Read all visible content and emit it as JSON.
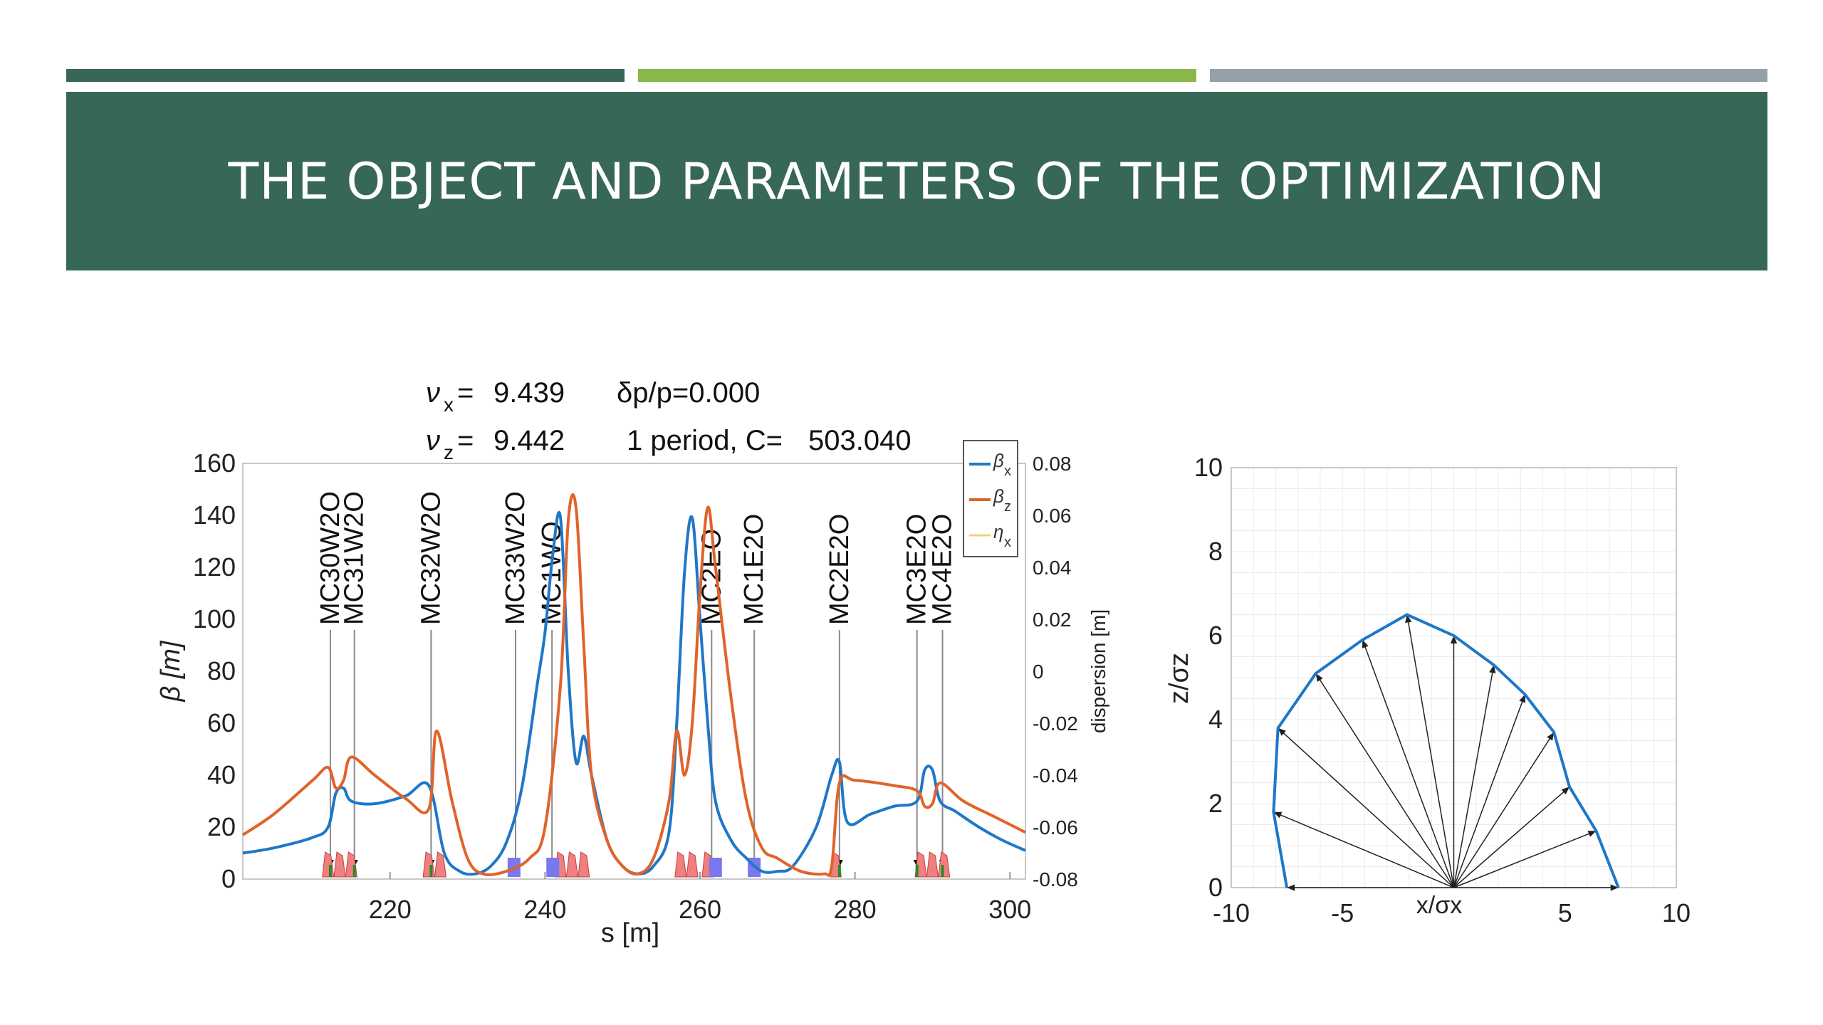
{
  "slide": {
    "title": "THE OBJECT  AND PARAMETERS OF  THE OPTIMIZATION",
    "colors": {
      "banner": "#376755",
      "stripe_dark": "#376755",
      "stripe_green": "#8ab749",
      "stripe_gray": "#94a1a8"
    }
  },
  "chart_data": [
    {
      "type": "line",
      "header": {
        "nux_label": "ν",
        "nux_sub": "x",
        "nux_eq": "=",
        "nux_value": "9.439",
        "dpp": "δp/p=0.000",
        "nuz_label": "ν",
        "nuz_sub": "z",
        "nuz_eq": "=",
        "nuz_value": "9.442",
        "period": "1 period, C=",
        "circumference": "503.040"
      },
      "xlabel": "s [m]",
      "ylabel": "β [m]",
      "y2label": "dispersion [m]",
      "xlim": [
        201,
        302
      ],
      "ylim": [
        0,
        160
      ],
      "y2lim": [
        -0.08,
        0.08
      ],
      "xticks": [
        "220",
        "240",
        "260",
        "280",
        "300"
      ],
      "xtick_values": [
        220,
        240,
        260,
        280,
        300
      ],
      "yticks": [
        "0",
        "20",
        "40",
        "60",
        "80",
        "100",
        "120",
        "140",
        "160"
      ],
      "ytick_values": [
        0,
        20,
        40,
        60,
        80,
        100,
        120,
        140,
        160
      ],
      "y2ticks": [
        "-0.08",
        "-0.06",
        "-0.04",
        "-0.02",
        "0",
        "0.02",
        "0.04",
        "0.06",
        "0.08"
      ],
      "y2tick_values": [
        -0.08,
        -0.06,
        -0.04,
        -0.02,
        0,
        0.02,
        0.04,
        0.06,
        0.08
      ],
      "legend": {
        "position": "top-right",
        "entries": [
          {
            "sym": "β",
            "sub": "x",
            "color": "#1f77c8"
          },
          {
            "sym": "β",
            "sub": "z",
            "color": "#e0632a"
          },
          {
            "sym": "η",
            "sub": "x",
            "color": "#f2d27a"
          }
        ]
      },
      "series": [
        {
          "name": "βx",
          "color": "#1f77c8",
          "x": [
            201,
            205,
            210,
            212,
            213,
            214,
            215,
            218,
            222,
            225,
            227,
            229,
            231,
            233,
            235,
            237,
            239,
            240,
            241,
            242,
            243,
            244,
            245,
            246,
            248,
            250,
            252,
            254,
            256,
            257,
            258,
            259,
            260,
            261,
            262,
            264,
            266,
            268,
            270,
            272,
            275,
            277,
            278,
            279,
            282,
            285,
            288,
            289,
            290,
            291,
            293,
            296,
            299,
            302
          ],
          "y": [
            10,
            12,
            16,
            20,
            33,
            35,
            30,
            29,
            32,
            36,
            10,
            3,
            2,
            5,
            14,
            35,
            75,
            95,
            125,
            139,
            80,
            45,
            55,
            40,
            15,
            5,
            2,
            5,
            18,
            60,
            118,
            139,
            100,
            60,
            30,
            15,
            8,
            3,
            3,
            5,
            20,
            40,
            45,
            22,
            25,
            28,
            30,
            42,
            42,
            30,
            26,
            20,
            15,
            11
          ]
        },
        {
          "name": "βz",
          "color": "#e0632a",
          "x": [
            201,
            205,
            210,
            212,
            213,
            214,
            215,
            218,
            222,
            225,
            226,
            228,
            230,
            232,
            235,
            238,
            240,
            242,
            243,
            244,
            245,
            246,
            248,
            250,
            252,
            254,
            256,
            257,
            258,
            259,
            260,
            261,
            262,
            264,
            266,
            268,
            270,
            273,
            276,
            277,
            278,
            280,
            285,
            288,
            289,
            290,
            291,
            294,
            298,
            302
          ],
          "y": [
            17,
            25,
            38,
            43,
            35,
            38,
            47,
            40,
            31,
            27,
            57,
            30,
            8,
            2,
            3,
            8,
            20,
            75,
            138,
            143,
            90,
            40,
            15,
            5,
            2,
            8,
            30,
            57,
            40,
            60,
            110,
            143,
            120,
            70,
            30,
            12,
            8,
            3,
            2,
            5,
            37,
            38,
            36,
            34,
            28,
            29,
            37,
            30,
            24,
            18
          ]
        }
      ],
      "markers": {
        "labels": [
          "MC30W2O",
          "MC31W2O",
          "MC32W2O",
          "MC33W2O",
          "MC1WO",
          "MC2EO",
          "MC1E2O",
          "MC2E2O",
          "MC3E2O",
          "MC4E2O"
        ],
        "s": [
          212.3,
          215.4,
          225.3,
          236.2,
          240.9,
          261.5,
          267.0,
          278.0,
          288.0,
          291.3
        ]
      }
    },
    {
      "type": "line",
      "xlabel": "x/σx",
      "ylabel": "z/σz",
      "xlim": [
        -10,
        10
      ],
      "ylim": [
        0,
        10
      ],
      "xticks": [
        "-10",
        "-5",
        "5",
        "10"
      ],
      "xtick_values": [
        -10,
        -5,
        5,
        10
      ],
      "yticks": [
        "0",
        "2",
        "4",
        "6",
        "8",
        "10"
      ],
      "ytick_values": [
        0,
        2,
        4,
        6,
        8,
        10
      ],
      "grid": true,
      "series": [
        {
          "name": "aperture",
          "color": "#1f77c8",
          "x": [
            -7.5,
            -8.1,
            -7.9,
            -6.2,
            -4.1,
            -2.1,
            0.0,
            1.8,
            3.2,
            4.5,
            5.2,
            6.4,
            7.4
          ],
          "y": [
            0.0,
            1.8,
            3.8,
            5.1,
            5.9,
            6.5,
            6.0,
            5.3,
            4.6,
            3.7,
            2.4,
            1.35,
            0.0
          ]
        }
      ],
      "rays": {
        "color": "#222222",
        "origin": [
          0,
          0
        ]
      }
    }
  ]
}
